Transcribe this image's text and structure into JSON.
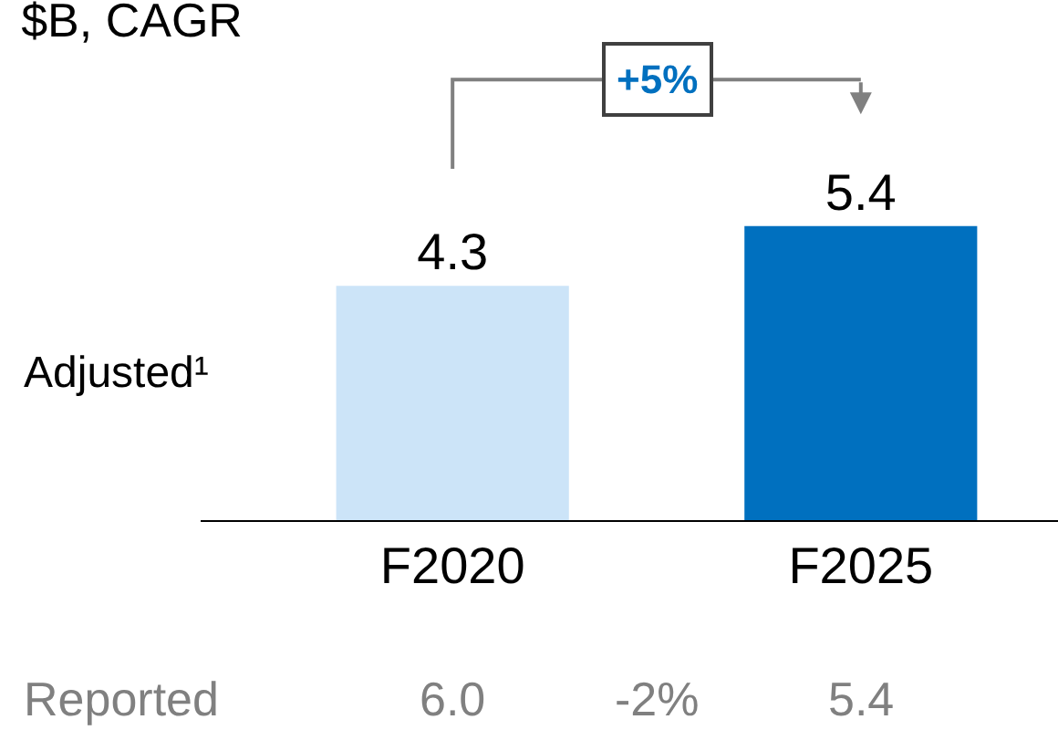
{
  "chart_data": {
    "type": "bar",
    "title": "$B, CAGR",
    "categories": [
      "F2020",
      "F2025"
    ],
    "values": [
      4.3,
      5.4
    ],
    "colors": [
      "#cce4f8",
      "#0070bf"
    ],
    "data_labels": true,
    "legend": false,
    "tick_labels": "x",
    "annotations": [
      "+5%",
      "Adjusted¹",
      "Reported",
      "6.0",
      "-2%",
      "5.4"
    ]
  }
}
